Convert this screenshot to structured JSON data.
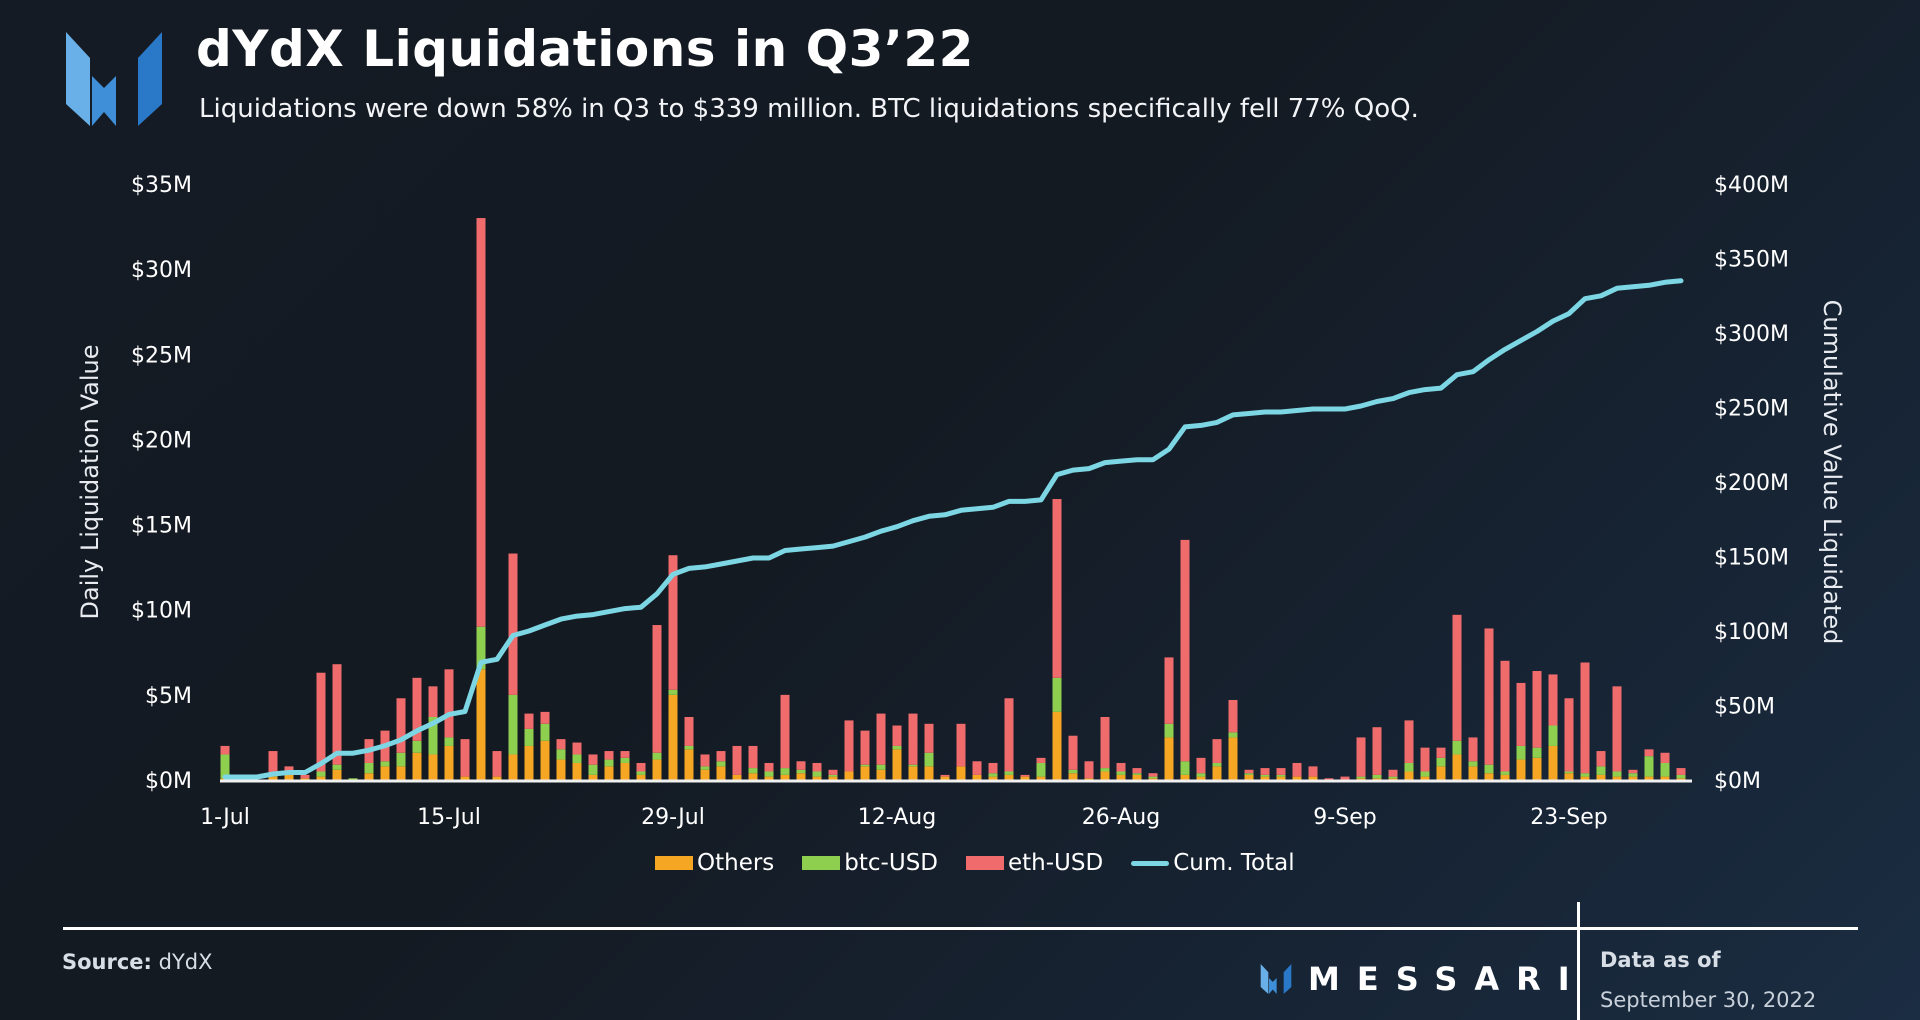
{
  "header": {
    "title": "dYdX Liquidations in Q3’22",
    "subtitle": "Liquidations were down 58% in Q3 to $339 million. BTC liquidations specifically fell 77% QoQ."
  },
  "footer": {
    "source_label": "Source:",
    "source_value": "dYdX",
    "brand": "MESSARI",
    "asof_label": "Data as of",
    "asof_date": "September 30, 2022"
  },
  "colors": {
    "others": "#f5a623",
    "btc": "#8fcf4f",
    "eth": "#f06b6b",
    "cum": "#7dd6e3"
  },
  "chart_data": {
    "type": "bar",
    "stacked": true,
    "title": "dYdX Liquidations in Q3’22",
    "ylabel": "Daily Liquidation Value",
    "y2label": "Cumulative Value Liquidated",
    "ylim": [
      0,
      35
    ],
    "y2lim": [
      0,
      400
    ],
    "yticks": [
      "$0M",
      "$5M",
      "$10M",
      "$15M",
      "$20M",
      "$25M",
      "$30M",
      "$35M"
    ],
    "y2ticks": [
      "$0M",
      "$50M",
      "$100M",
      "$150M",
      "$200M",
      "$250M",
      "$300M",
      "$350M",
      "$400M"
    ],
    "xticks": [
      {
        "label": "1-Jul",
        "day": 0
      },
      {
        "label": "15-Jul",
        "day": 14
      },
      {
        "label": "29-Jul",
        "day": 28
      },
      {
        "label": "12-Aug",
        "day": 42
      },
      {
        "label": "26-Aug",
        "day": 56
      },
      {
        "label": "9-Sep",
        "day": 70
      },
      {
        "label": "23-Sep",
        "day": 84
      }
    ],
    "units": "USD millions",
    "grid": false,
    "legend": "bottom-center",
    "legend_entries": [
      "Others",
      "btc-USD",
      "eth-USD",
      "Cum. Total"
    ],
    "series": [
      {
        "name": "Others",
        "values": [
          0.1,
          0,
          0,
          0.2,
          0.3,
          0.1,
          0.2,
          0.6,
          0,
          0.4,
          0.8,
          0.8,
          1.6,
          1.5,
          2.0,
          0.2,
          6.5,
          0.2,
          1.5,
          2.0,
          2.3,
          1.2,
          1.0,
          0.3,
          0.8,
          1.0,
          0.3,
          1.2,
          5.0,
          1.8,
          0.6,
          0.8,
          0.3,
          0.4,
          0.2,
          0.3,
          0.4,
          0.2,
          0.2,
          0.5,
          0.8,
          0.6,
          1.8,
          0.8,
          0.8,
          0.2,
          0.8,
          0.3,
          0.2,
          0.3,
          0.2,
          0.2,
          4.0,
          0.4,
          0.1,
          0.5,
          0.3,
          0.3,
          0.1,
          2.5,
          0.3,
          0.2,
          0.8,
          2.5,
          0.3,
          0.2,
          0.2,
          0.2,
          0.2,
          0,
          0,
          0.1,
          0.1,
          0.1,
          0.5,
          0.2,
          0.8,
          1.5,
          0.8,
          0.4,
          0.3,
          1.2,
          1.3,
          2.0,
          0.4,
          0.2,
          0.3,
          0.2,
          0.2,
          0.2,
          0.2,
          0.1
        ]
      },
      {
        "name": "btc-USD",
        "values": [
          1.4,
          0,
          0,
          0.2,
          0.2,
          0,
          0.3,
          0.3,
          0.1,
          0.6,
          0.3,
          0.8,
          0.7,
          2.2,
          0.5,
          0,
          2.5,
          0,
          3.5,
          1.0,
          1.0,
          0.6,
          0.5,
          0.6,
          0.4,
          0.3,
          0.2,
          0.4,
          0.3,
          0.2,
          0.2,
          0.3,
          0,
          0.3,
          0.3,
          0.4,
          0.2,
          0.3,
          0.1,
          0,
          0.1,
          0.3,
          0.2,
          0.1,
          0.8,
          0,
          0,
          0,
          0.2,
          0.2,
          0,
          0.8,
          2.0,
          0.2,
          0,
          0.2,
          0.2,
          0.1,
          0.1,
          0.8,
          0.8,
          0.2,
          0.2,
          0.3,
          0.1,
          0.1,
          0.1,
          0,
          0,
          0,
          0,
          0.1,
          0.2,
          0.1,
          0.5,
          0.3,
          0.5,
          0.8,
          0.3,
          0.5,
          0.2,
          0.8,
          0.6,
          1.2,
          0.1,
          0.2,
          0.5,
          0.3,
          0.2,
          1.2,
          0.8,
          0.2
        ]
      },
      {
        "name": "eth-USD",
        "values": [
          0.5,
          0,
          0,
          1.3,
          0.3,
          0.2,
          5.8,
          5.9,
          0,
          1.4,
          1.8,
          3.2,
          3.7,
          1.8,
          4.0,
          2.2,
          24.0,
          1.5,
          8.3,
          0.9,
          0.7,
          0.6,
          0.7,
          0.6,
          0.5,
          0.4,
          0.5,
          7.5,
          7.9,
          1.7,
          0.7,
          0.6,
          1.7,
          1.3,
          0.5,
          4.3,
          0.5,
          0.5,
          0.3,
          3.0,
          2.0,
          3.0,
          1.2,
          3.0,
          1.7,
          0.1,
          2.5,
          0.8,
          0.6,
          4.3,
          0.1,
          0.3,
          10.5,
          2.0,
          1.0,
          3.0,
          0.5,
          0.3,
          0.2,
          3.9,
          13.0,
          0.9,
          1.4,
          1.9,
          0.2,
          0.4,
          0.4,
          0.8,
          0.6,
          0.1,
          0.2,
          2.3,
          2.8,
          0.4,
          2.5,
          1.4,
          0.6,
          7.4,
          1.4,
          8.0,
          6.5,
          3.7,
          4.5,
          3.0,
          4.3,
          6.5,
          0.9,
          5.0,
          0.2,
          0.4,
          0.6,
          0.4
        ]
      },
      {
        "name": "Cum. Total",
        "axis": "right",
        "values": [
          2,
          2,
          2,
          4,
          5,
          5,
          11,
          18,
          18,
          20,
          23,
          27,
          33,
          38,
          44,
          46,
          79,
          81,
          97,
          100,
          104,
          108,
          110,
          111,
          113,
          115,
          116,
          125,
          138,
          142,
          143,
          145,
          147,
          149,
          149,
          154,
          155,
          156,
          157,
          160,
          163,
          167,
          170,
          174,
          177,
          178,
          181,
          182,
          183,
          187,
          187,
          188,
          205,
          208,
          209,
          213,
          214,
          215,
          215,
          222,
          237,
          238,
          240,
          245,
          246,
          247,
          247,
          248,
          249,
          249,
          249,
          251,
          254,
          256,
          260,
          262,
          263,
          272,
          274,
          282,
          289,
          295,
          301,
          308,
          313,
          323,
          325,
          330,
          331,
          332,
          334,
          335
        ]
      }
    ]
  }
}
